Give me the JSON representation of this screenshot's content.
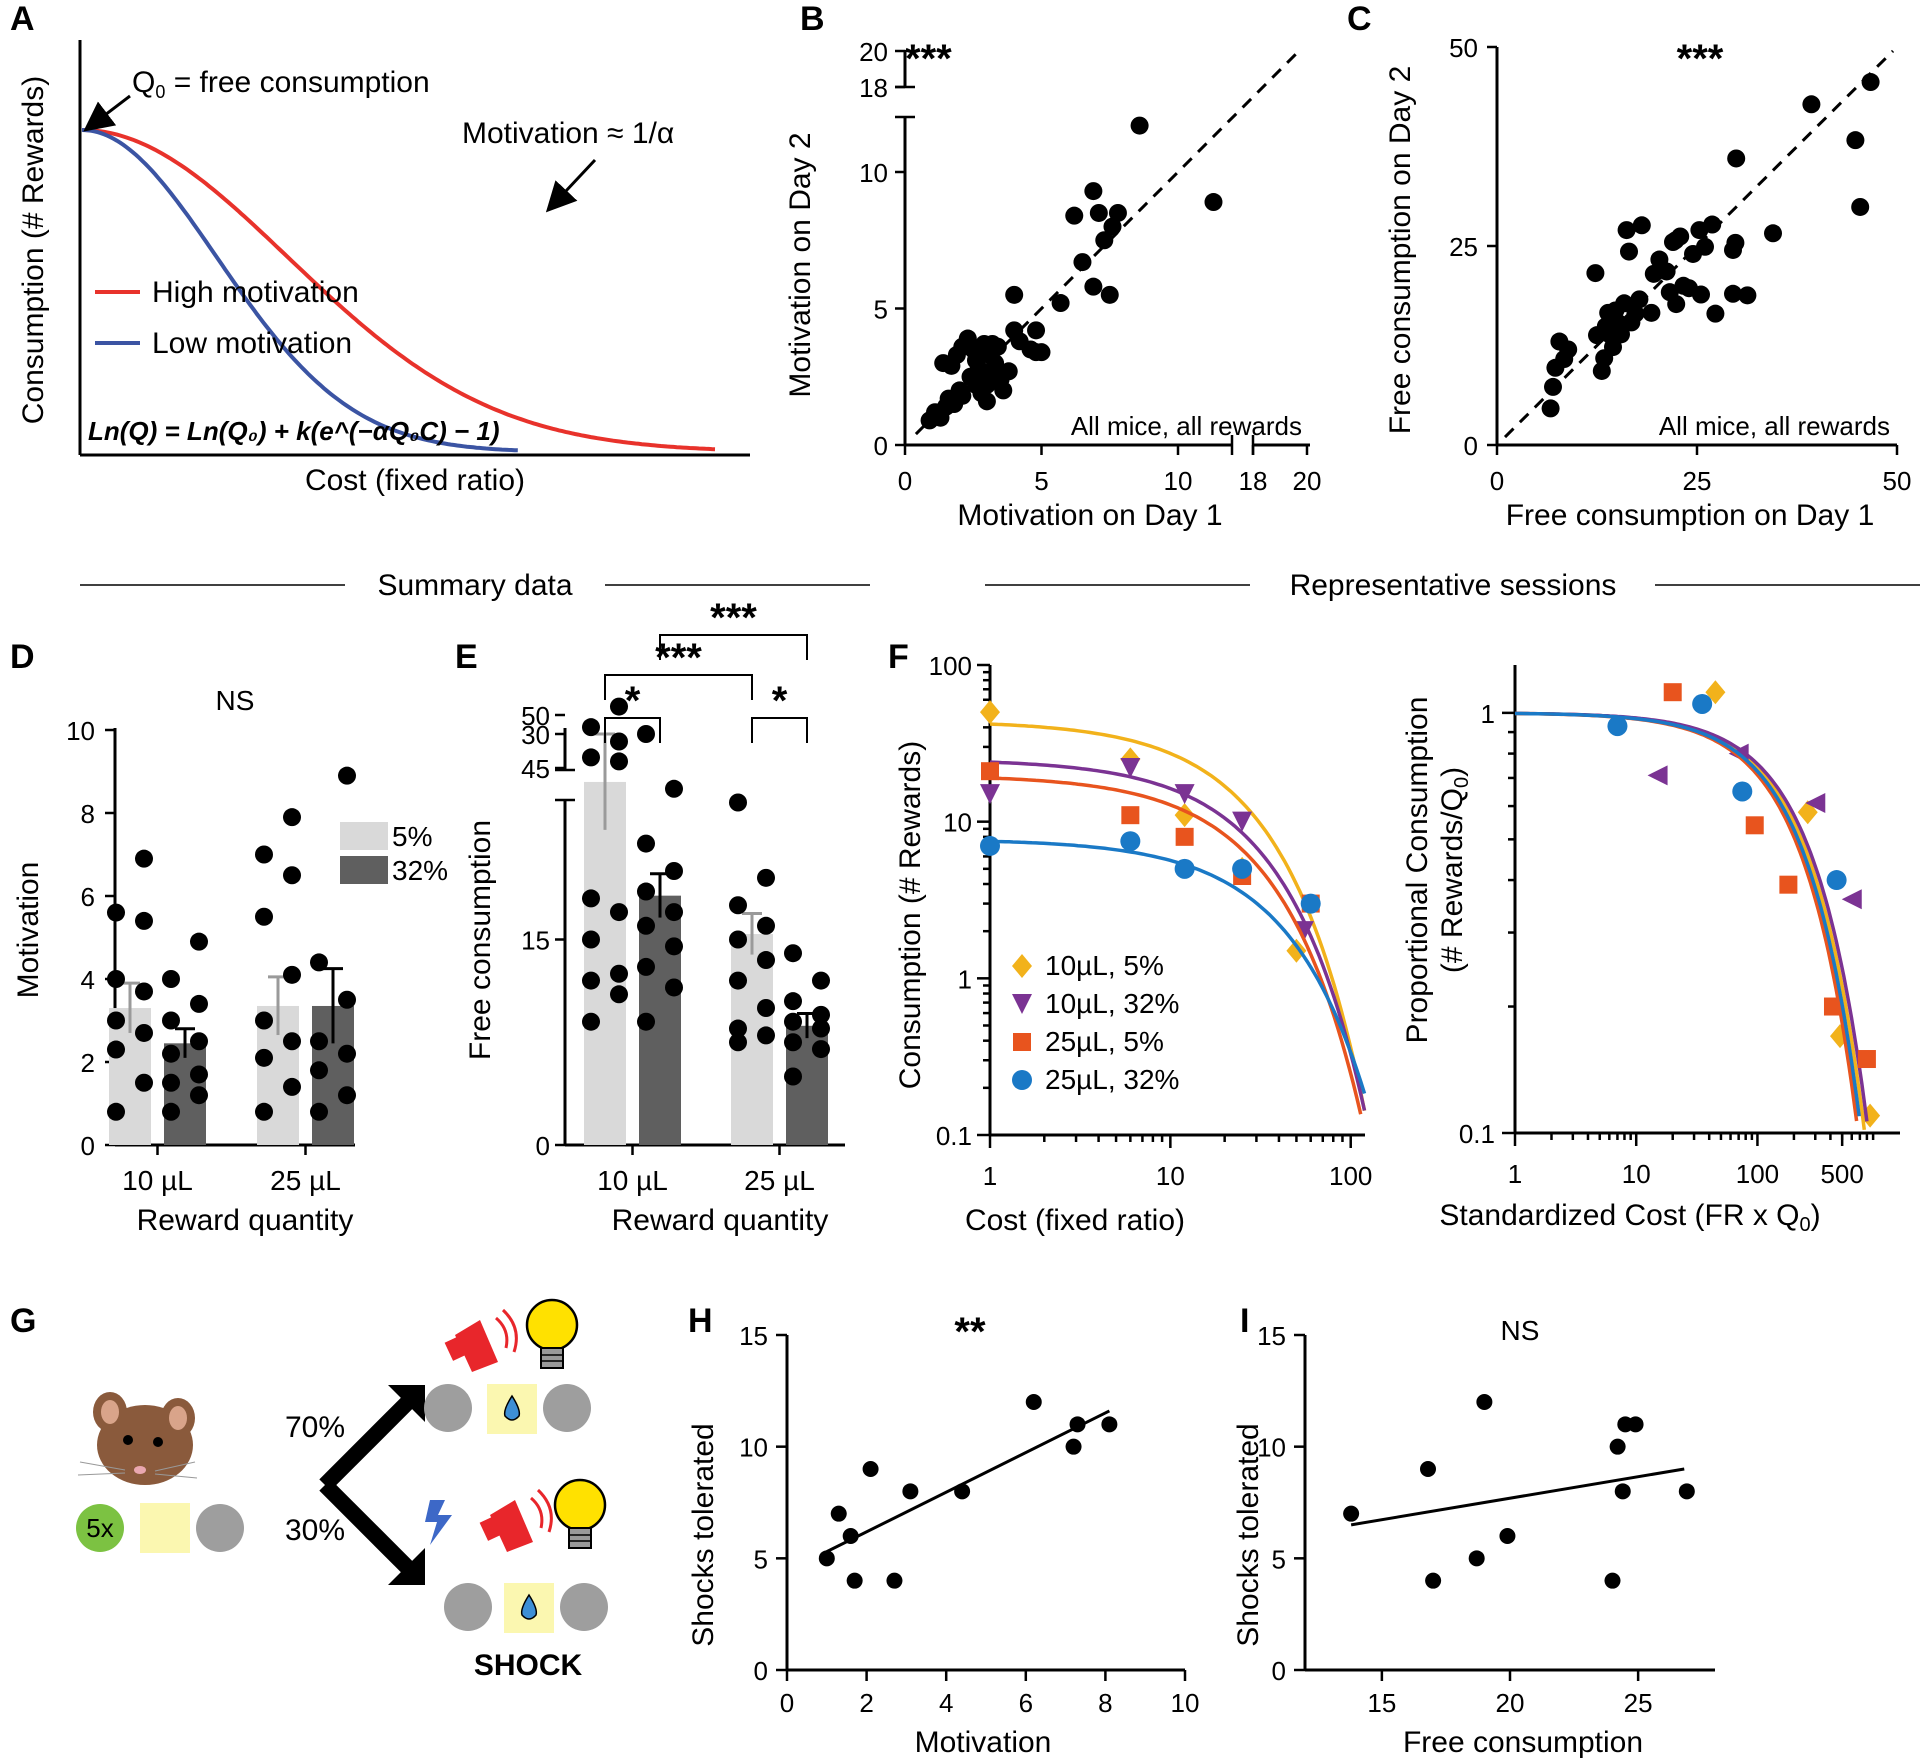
{
  "colors": {
    "red": "#e8322b",
    "blue": "#3b54a3",
    "yellow": "#f2b21b",
    "purple": "#7b3393",
    "orange": "#e8541e",
    "cyan": "#1a79c6",
    "bar_light": "#d9d9d9",
    "bar_dark": "#5f5f5f"
  },
  "section_titles": {
    "summary": "Summary data",
    "representative": "Representative sessions"
  },
  "panelA": {
    "letter": "A",
    "q0_label": "Q",
    "q0_sub": "0",
    "q0_rest": " = free consumption",
    "motivation_label": "Motivation ≈ 1/α",
    "legend_high": "High motivation",
    "legend_low": "Low motivation",
    "formula": "Ln(Q) = Ln(Q₀) + k(e^(−αQ₀C) − 1)",
    "ylabel": "Consumption (# Rewards)",
    "xlabel": "Cost (fixed ratio)"
  },
  "chart_data": [
    {
      "panel": "B",
      "type": "scatter",
      "letter": "B",
      "sig": "***",
      "note": "All mice, all rewards",
      "xlabel": "Motivation on Day 1",
      "ylabel": "Motivation on Day 2",
      "x_ticks": [
        "0",
        "5",
        "10",
        "18",
        "20"
      ],
      "y_ticks": [
        "0",
        "5",
        "10",
        "18",
        "20"
      ],
      "xlim": [
        0,
        20
      ],
      "ylim": [
        0,
        20
      ],
      "axis_break": true,
      "identity_line": true,
      "points": [
        [
          0.9,
          0.9
        ],
        [
          1.1,
          1.2
        ],
        [
          1.3,
          1.0
        ],
        [
          1.5,
          1.4
        ],
        [
          1.6,
          1.7
        ],
        [
          1.8,
          1.5
        ],
        [
          2.0,
          2.0
        ],
        [
          2.1,
          1.8
        ],
        [
          1.4,
          3.0
        ],
        [
          1.7,
          2.9
        ],
        [
          1.9,
          3.3
        ],
        [
          2.1,
          3.6
        ],
        [
          2.3,
          3.9
        ],
        [
          2.5,
          3.5
        ],
        [
          2.6,
          3.1
        ],
        [
          2.7,
          2.8
        ],
        [
          2.8,
          2.5
        ],
        [
          2.9,
          3.7
        ],
        [
          3.0,
          2.2
        ],
        [
          3.1,
          3.3
        ],
        [
          3.2,
          2.7
        ],
        [
          3.3,
          3.0
        ],
        [
          3.4,
          3.6
        ],
        [
          3.5,
          2.4
        ],
        [
          3.6,
          2.0
        ],
        [
          3.8,
          2.7
        ],
        [
          2.4,
          2.5
        ],
        [
          2.6,
          2.2
        ],
        [
          2.8,
          1.9
        ],
        [
          3.0,
          1.6
        ],
        [
          3.2,
          3.7
        ],
        [
          4.0,
          4.2
        ],
        [
          4.2,
          3.8
        ],
        [
          4.6,
          3.5
        ],
        [
          4.8,
          4.2
        ],
        [
          4.8,
          3.4
        ],
        [
          4.0,
          5.5
        ],
        [
          5.0,
          3.4
        ],
        [
          5.7,
          5.2
        ],
        [
          6.2,
          8.4
        ],
        [
          6.5,
          6.7
        ],
        [
          6.9,
          9.3
        ],
        [
          7.1,
          8.5
        ],
        [
          7.3,
          7.5
        ],
        [
          7.5,
          5.5
        ],
        [
          7.6,
          8.0
        ],
        [
          7.8,
          8.5
        ],
        [
          6.9,
          5.8
        ],
        [
          11.3,
          8.9
        ],
        [
          13.8,
          11.7
        ]
      ]
    },
    {
      "panel": "C",
      "type": "scatter",
      "letter": "C",
      "sig": "***",
      "note": "All mice, all rewards",
      "xlabel": "Free consumption on Day 1",
      "ylabel": "Free consumption on Day 2",
      "x_ticks": [
        "0",
        "25",
        "50"
      ],
      "y_ticks": [
        "0",
        "25",
        "50"
      ],
      "xlim": [
        0,
        50
      ],
      "ylim": [
        0,
        50
      ],
      "identity_line": true,
      "points": [
        [
          6.7,
          4.6
        ],
        [
          7.0,
          7.3
        ],
        [
          7.3,
          9.7
        ],
        [
          7.8,
          13.0
        ],
        [
          8.4,
          10.8
        ],
        [
          8.9,
          12.0
        ],
        [
          12.3,
          21.6
        ],
        [
          12.5,
          13.8
        ],
        [
          13.1,
          9.3
        ],
        [
          13.4,
          10.9
        ],
        [
          13.6,
          14.9
        ],
        [
          13.9,
          16.6
        ],
        [
          14.2,
          13.8
        ],
        [
          14.5,
          12.3
        ],
        [
          14.8,
          16.9
        ],
        [
          15.2,
          15.3
        ],
        [
          15.5,
          13.9
        ],
        [
          15.9,
          17.8
        ],
        [
          16.2,
          27.0
        ],
        [
          16.5,
          24.3
        ],
        [
          16.8,
          15.4
        ],
        [
          17.3,
          16.5
        ],
        [
          17.8,
          18.3
        ],
        [
          18.1,
          27.6
        ],
        [
          19.3,
          16.6
        ],
        [
          19.6,
          21.5
        ],
        [
          20.3,
          23.3
        ],
        [
          21.2,
          21.8
        ],
        [
          21.6,
          19.2
        ],
        [
          22.0,
          25.5
        ],
        [
          22.3,
          25.7
        ],
        [
          22.4,
          17.7
        ],
        [
          22.9,
          26.2
        ],
        [
          23.3,
          20.0
        ],
        [
          24.0,
          19.7
        ],
        [
          24.5,
          24.0
        ],
        [
          25.5,
          18.9
        ],
        [
          25.3,
          27.0
        ],
        [
          26.0,
          24.9
        ],
        [
          26.9,
          27.7
        ],
        [
          27.3,
          16.5
        ],
        [
          29.5,
          24.5
        ],
        [
          29.8,
          25.4
        ],
        [
          29.9,
          36.0
        ],
        [
          29.5,
          19.0
        ],
        [
          31.3,
          18.8
        ],
        [
          34.5,
          26.6
        ],
        [
          39.3,
          42.8
        ],
        [
          44.8,
          38.3
        ],
        [
          45.4,
          29.9
        ],
        [
          46.7,
          45.6
        ]
      ]
    },
    {
      "panel": "D",
      "type": "bar",
      "letter": "D",
      "sig": "NS",
      "xlabel": "Reward quantity",
      "ylabel": "Motivation",
      "categories": [
        "10 µL",
        "25 µL"
      ],
      "legend": [
        "5%",
        "32%"
      ],
      "y_ticks": [
        "0",
        "2",
        "4",
        "6",
        "8",
        "10"
      ],
      "ylim": [
        0,
        10
      ],
      "series": [
        {
          "name": "5%",
          "values": [
            3.3,
            3.35
          ],
          "sem": [
            0.6,
            0.7
          ]
        },
        {
          "name": "32%",
          "values": [
            2.45,
            3.35
          ],
          "sem": [
            0.35,
            0.9
          ]
        }
      ],
      "points": [
        [
          0.8,
          1.5,
          2.3,
          2.7,
          3.0,
          3.7,
          4.0,
          5.4,
          5.6,
          6.9
        ],
        [
          0.8,
          1.2,
          1.5,
          1.7,
          2.2,
          2.5,
          3.0,
          3.4,
          4.0,
          4.9
        ],
        [
          0.8,
          1.4,
          2.1,
          2.5,
          3.0,
          4.1,
          5.5,
          6.5,
          7.0,
          7.9
        ],
        [
          0.8,
          1.2,
          1.8,
          2.2,
          2.5,
          3.5,
          4.4,
          8.9
        ]
      ]
    },
    {
      "panel": "E",
      "type": "bar",
      "letter": "E",
      "sig": [
        "*",
        "***",
        "*",
        "***"
      ],
      "xlabel": "Reward quantity",
      "ylabel": "Free consumption",
      "categories": [
        "10 µL",
        "25 µL"
      ],
      "y_ticks": [
        "0",
        "15",
        "30",
        "45",
        "50"
      ],
      "ylim": [
        0,
        50
      ],
      "axis_break": true,
      "series": [
        {
          "name": "5%",
          "values": [
            26.5,
            15.4
          ],
          "sem": [
            3.5,
            1.5
          ]
        },
        {
          "name": "32%",
          "values": [
            18.2,
            8.7
          ],
          "sem": [
            1.6,
            0.9
          ]
        }
      ],
      "points": [
        [
          9.0,
          11.0,
          12.0,
          12.5,
          15.0,
          17.0,
          18.0,
          28.0,
          30.5,
          32.0,
          46.0,
          47.5
        ],
        [
          9.0,
          11.5,
          13.0,
          14.5,
          16.0,
          17.0,
          18.5,
          20.0,
          22.0,
          26.0,
          30.0
        ],
        [
          7.5,
          8.0,
          8.5,
          10.0,
          12.0,
          13.5,
          15.0,
          16.0,
          17.5,
          19.5,
          25.0
        ],
        [
          5.0,
          7.0,
          7.5,
          8.5,
          9.0,
          9.5,
          10.5,
          12.0,
          14.0
        ]
      ]
    },
    {
      "panel": "F1",
      "type": "scatter",
      "letter": "F",
      "xlabel": "Cost (fixed ratio)",
      "ylabel": "Consumption (# Rewards)",
      "log_x": true,
      "log_y": true,
      "x_ticks": [
        "1",
        "10",
        "100"
      ],
      "y_ticks": [
        "0.1",
        "1",
        "10",
        "100"
      ],
      "xlim": [
        1,
        120
      ],
      "ylim": [
        0.1,
        100
      ],
      "series": [
        {
          "name": "10µL, 5%",
          "marker": "diamond",
          "color": "#f2b21b",
          "points": [
            [
              1,
              50
            ],
            [
              6,
              25
            ],
            [
              12,
              11
            ],
            [
              25,
              5
            ],
            [
              50,
              1.5
            ]
          ],
          "q0": 42,
          "alpha": 0.00052
        },
        {
          "name": "10µL, 32%",
          "marker": "tri-down",
          "color": "#7b3393",
          "points": [
            [
              1,
              15
            ],
            [
              6,
              22
            ],
            [
              12,
              15
            ],
            [
              25,
              10
            ],
            [
              55,
              2
            ]
          ],
          "q0": 24,
          "alpha": 0.00082
        },
        {
          "name": "25µL, 5%",
          "marker": "square",
          "color": "#e8541e",
          "points": [
            [
              1,
              21
            ],
            [
              6,
              11
            ],
            [
              12,
              8
            ],
            [
              25,
              4.5
            ],
            [
              60,
              3
            ]
          ],
          "q0": 19,
          "alpha": 0.00105
        },
        {
          "name": "25µL, 32%",
          "marker": "circle",
          "color": "#1a79c6",
          "points": [
            [
              1,
              7
            ],
            [
              6,
              7.5
            ],
            [
              12,
              5
            ],
            [
              25,
              5
            ],
            [
              60,
              3
            ]
          ],
          "q0": 7.5,
          "alpha": 0.0019
        }
      ]
    },
    {
      "panel": "F2",
      "type": "scatter",
      "xlabel": "Standardized Cost (FR x Q",
      "xlabel_sub": "0",
      "xlabel_end": ")",
      "ylabel": "Proportional Consumption",
      "ylabel2": "(# Rewards/Q",
      "ylabel2_sub": "0",
      "ylabel2_end": ")",
      "log_x": true,
      "log_y": true,
      "x_ticks": [
        "1",
        "10",
        "100",
        "500"
      ],
      "y_ticks": [
        "0.1",
        "1"
      ],
      "xlim": [
        1,
        1500
      ],
      "ylim": [
        0.1,
        1.3
      ],
      "series": [
        {
          "name": "10µL, 5%",
          "points": [
            [
              45,
              1.12
            ],
            [
              260,
              0.58
            ],
            [
              480,
              0.17
            ],
            [
              850,
              0.11
            ]
          ]
        },
        {
          "name": "10µL, 32%",
          "points": [
            [
              15,
              0.71
            ],
            [
              70,
              0.8
            ],
            [
              300,
              0.61
            ],
            [
              600,
              0.36
            ]
          ]
        },
        {
          "name": "25µL, 5%",
          "points": [
            [
              20,
              1.12
            ],
            [
              95,
              0.54
            ],
            [
              180,
              0.39
            ],
            [
              420,
              0.2
            ],
            [
              800,
              0.15
            ]
          ]
        },
        {
          "name": "25µL, 32%",
          "points": [
            [
              7,
              0.93
            ],
            [
              35,
              1.05
            ],
            [
              75,
              0.65
            ],
            [
              450,
              0.4
            ]
          ]
        }
      ]
    },
    {
      "panel": "H",
      "type": "scatter",
      "letter": "H",
      "sig": "**",
      "xlabel": "Motivation",
      "ylabel": "Shocks tolerated",
      "x_ticks": [
        "0",
        "2",
        "4",
        "6",
        "8",
        "10"
      ],
      "y_ticks": [
        "0",
        "5",
        "10",
        "15"
      ],
      "xlim": [
        0,
        10
      ],
      "ylim": [
        0,
        15
      ],
      "fit": [
        [
          1.0,
          5.3
        ],
        [
          8.1,
          11.6
        ]
      ],
      "points": [
        [
          1.0,
          5.0
        ],
        [
          1.3,
          7.0
        ],
        [
          1.6,
          6.0
        ],
        [
          1.7,
          4.0
        ],
        [
          2.1,
          9.0
        ],
        [
          2.7,
          4.0
        ],
        [
          3.1,
          8.0
        ],
        [
          4.4,
          8.0
        ],
        [
          6.2,
          12.0
        ],
        [
          7.2,
          10.0
        ],
        [
          7.3,
          11.0
        ],
        [
          8.1,
          11.0
        ]
      ]
    },
    {
      "panel": "I",
      "type": "scatter",
      "letter": "I",
      "sig": "NS",
      "xlabel": "Free consumption",
      "ylabel": "Shocks tolerated",
      "x_ticks": [
        "15",
        "20",
        "25"
      ],
      "y_ticks": [
        "0",
        "5",
        "10",
        "15"
      ],
      "xlim": [
        12,
        28
      ],
      "ylim": [
        0,
        15
      ],
      "fit": [
        [
          13.8,
          6.5
        ],
        [
          26.8,
          9.0
        ]
      ],
      "points": [
        [
          13.8,
          7.0
        ],
        [
          16.8,
          9.0
        ],
        [
          17.0,
          4.0
        ],
        [
          18.7,
          5.0
        ],
        [
          19.0,
          12.0
        ],
        [
          19.9,
          6.0
        ],
        [
          24.0,
          4.0
        ],
        [
          24.2,
          10.0
        ],
        [
          24.4,
          8.0
        ],
        [
          24.5,
          11.0
        ],
        [
          24.9,
          11.0
        ],
        [
          26.9,
          8.0
        ]
      ]
    }
  ],
  "panelG": {
    "letter": "G",
    "pct_top": "70%",
    "pct_bottom": "30%",
    "repeat_label": "5x",
    "shock_label": "SHOCK"
  }
}
